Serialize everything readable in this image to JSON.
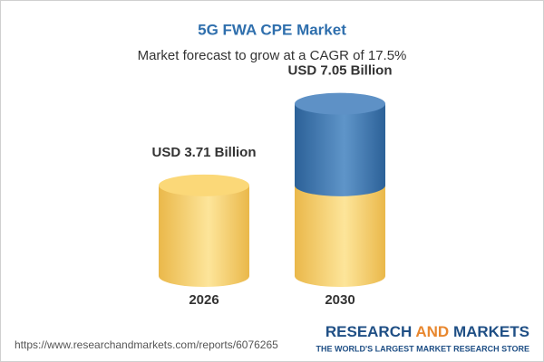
{
  "chart_data": {
    "type": "cylinder",
    "title": "5G FWA CPE Market",
    "subtitle": "Market forecast to grow at a CAGR of 17.5%",
    "categories": [
      "2026",
      "2030"
    ],
    "values": [
      3.71,
      7.05
    ],
    "value_labels": [
      "USD 3.71 Billion",
      "USD 7.05 Billion"
    ],
    "color": "#f2c558",
    "growth_color": "#3d75ad"
  },
  "footer": {
    "url": "https://www.researchandmarkets.com/reports/6076265",
    "brand": [
      "RESEARCH",
      "AND",
      "MARKETS"
    ],
    "tagline": "THE WORLD'S LARGEST MARKET RESEARCH STORE"
  }
}
